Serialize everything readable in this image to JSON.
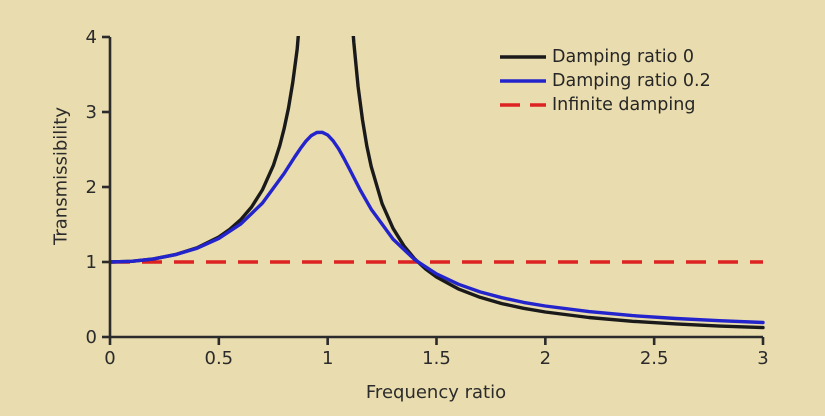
{
  "chart_data": {
    "type": "line",
    "xlabel": "Frequency ratio",
    "ylabel": "Transmissibility",
    "xlim": [
      0,
      3
    ],
    "ylim": [
      0,
      4
    ],
    "xticks": [
      0,
      0.5,
      1,
      1.5,
      2,
      2.5,
      3
    ],
    "xtick_labels": [
      "0",
      "0.5",
      "1",
      "1.5",
      "2",
      "2.5",
      "3"
    ],
    "yticks": [
      0,
      1,
      2,
      3,
      4
    ],
    "ytick_labels": [
      "0",
      "1",
      "2",
      "3",
      "4"
    ],
    "grid": false,
    "legend_position": "top-right",
    "background_color": "#e9dcae",
    "axis_color": "#2b2b2b",
    "draw_order": [
      2,
      0,
      1
    ],
    "series": [
      {
        "name": "Damping ratio 0",
        "color": "#1a1a1a",
        "style": "solid",
        "width": 3.4,
        "x": [
          0,
          0.1,
          0.2,
          0.3,
          0.4,
          0.5,
          0.55,
          0.6,
          0.65,
          0.7,
          0.75,
          0.78,
          0.8,
          0.82,
          0.84,
          0.86,
          0.873,
          null,
          1.105,
          1.12,
          1.14,
          1.16,
          1.18,
          1.2,
          1.25,
          1.3,
          1.35,
          1.4,
          1.45,
          1.5,
          1.6,
          1.7,
          1.8,
          1.9,
          2.0,
          2.2,
          2.4,
          2.6,
          2.8,
          3.0
        ],
        "y": [
          1,
          1.01,
          1.042,
          1.099,
          1.19,
          1.333,
          1.434,
          1.563,
          1.732,
          1.961,
          2.286,
          2.554,
          2.778,
          3.053,
          3.397,
          3.84,
          4.3,
          null,
          4.52,
          3.93,
          3.338,
          2.894,
          2.548,
          2.273,
          1.778,
          1.449,
          1.216,
          1.042,
          0.907,
          0.8,
          0.641,
          0.529,
          0.446,
          0.383,
          0.333,
          0.26,
          0.21,
          0.174,
          0.146,
          0.125
        ]
      },
      {
        "name": "Damping ratio 0.2",
        "color": "#2424cc",
        "style": "solid",
        "width": 3.4,
        "x": [
          0,
          0.1,
          0.2,
          0.3,
          0.4,
          0.5,
          0.6,
          0.7,
          0.8,
          0.85,
          0.875,
          0.9,
          0.925,
          0.95,
          0.975,
          1.0,
          1.025,
          1.05,
          1.075,
          1.1,
          1.15,
          1.2,
          1.3,
          1.4,
          1.5,
          1.6,
          1.7,
          1.8,
          1.9,
          2.0,
          2.2,
          2.4,
          2.6,
          2.8,
          3.0
        ],
        "y": [
          1,
          1.01,
          1.041,
          1.097,
          1.184,
          1.314,
          1.505,
          1.785,
          2.18,
          2.407,
          2.515,
          2.611,
          2.685,
          2.727,
          2.73,
          2.693,
          2.616,
          2.509,
          2.38,
          2.241,
          1.959,
          1.704,
          1.305,
          1.031,
          0.841,
          0.704,
          0.602,
          0.524,
          0.462,
          0.413,
          0.338,
          0.286,
          0.247,
          0.217,
          0.193
        ]
      },
      {
        "name": "Infinite damping",
        "color": "#dd2222",
        "style": "dashed",
        "width": 3.5,
        "x": [
          0,
          3
        ],
        "y": [
          1,
          1
        ]
      }
    ]
  }
}
